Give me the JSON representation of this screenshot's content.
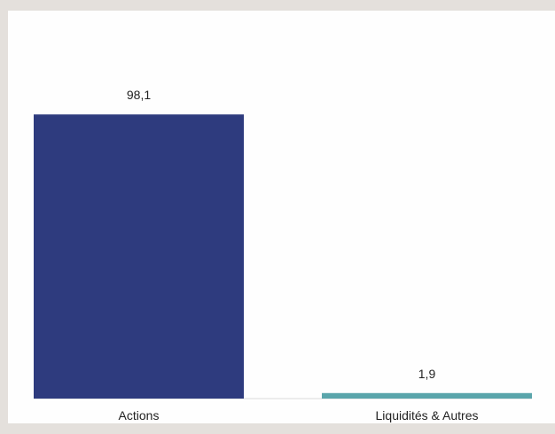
{
  "chart_data": {
    "type": "bar",
    "categories": [
      "Actions",
      "Liquidités & Autres"
    ],
    "values": [
      98.1,
      1.9
    ],
    "value_labels": [
      "98,1",
      "1,9"
    ],
    "colors": [
      "#2e3b7e",
      "#5aa5ab"
    ],
    "title": "",
    "xlabel": "",
    "ylabel": "",
    "ylim": [
      0,
      100
    ],
    "grid": false,
    "legend": "none"
  }
}
